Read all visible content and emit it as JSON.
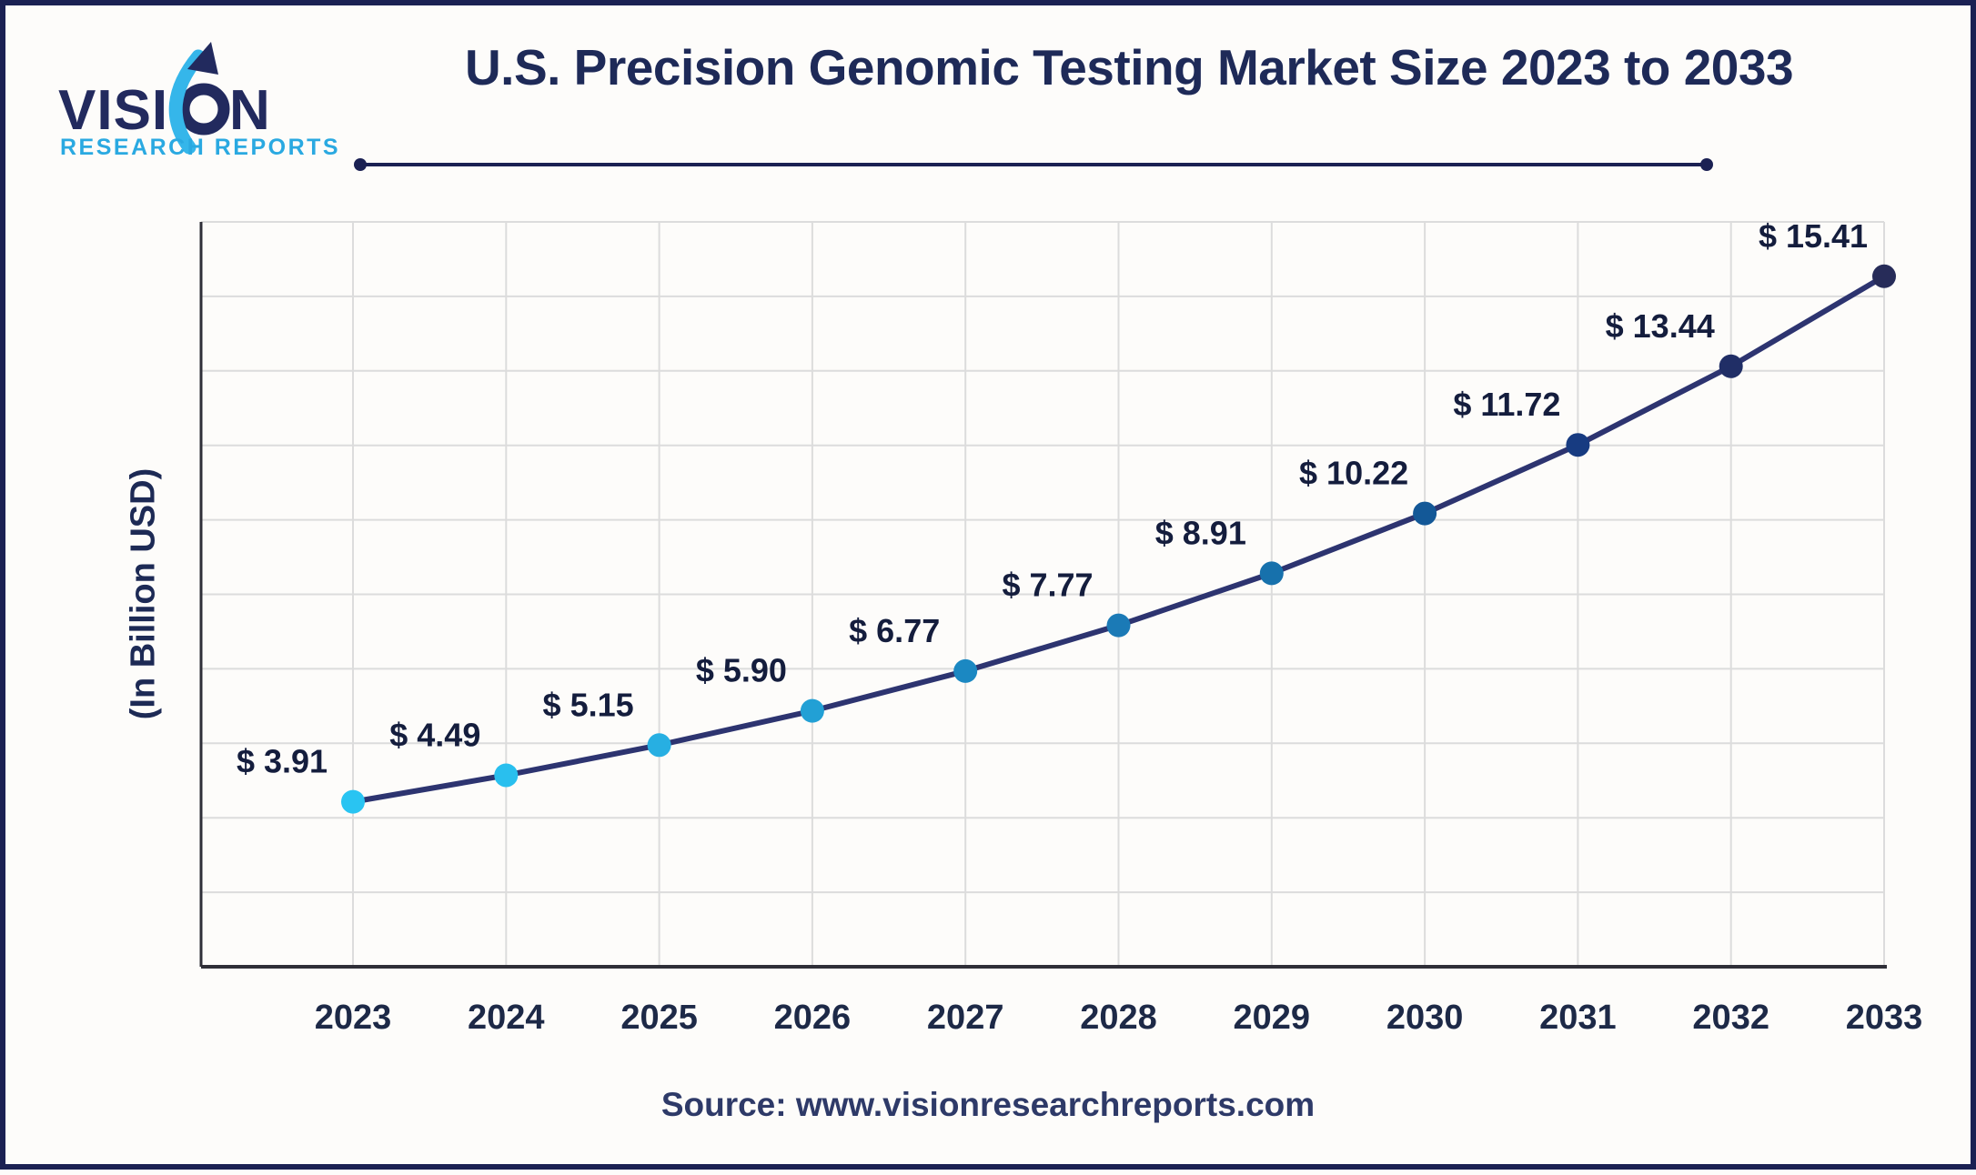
{
  "header": {
    "logo_line1": "VISION",
    "logo_line2": "RESEARCH REPORTS",
    "logo_navy": "#222a5e",
    "logo_blue": "#2aa9e1",
    "logo_cyan": "#35b6ea"
  },
  "chart_data": {
    "type": "line",
    "title": "U.S. Precision Genomic Testing Market Size 2023 to 2033",
    "ylabel": "(In Billion USD)",
    "xlabel": "",
    "categories": [
      "2023",
      "2024",
      "2025",
      "2026",
      "2027",
      "2028",
      "2029",
      "2030",
      "2031",
      "2032",
      "2033"
    ],
    "values": [
      3.91,
      4.49,
      5.15,
      5.9,
      6.77,
      7.77,
      8.91,
      10.22,
      11.72,
      13.44,
      15.41
    ],
    "point_labels": [
      "$ 3.91",
      "$ 4.49",
      "$ 5.15",
      "$ 5.90",
      "$ 6.77",
      "$ 7.77",
      "$ 8.91",
      "$ 10.22",
      "$ 11.72",
      "$ 13.44",
      "$ 15.41"
    ],
    "ylim": [
      0.3,
      16.6
    ],
    "grid": "on",
    "legend": "none",
    "line_color": "#2d3470",
    "point_colors": [
      "#29c4f2",
      "#29bfee",
      "#27afe2",
      "#22a0d5",
      "#1b88c2",
      "#1b7ab6",
      "#1771ac",
      "#135897",
      "#173b81",
      "#202e66",
      "#272c59"
    ],
    "grid_color": "#dcdcdc",
    "axis_color": "#2f2f38",
    "label_color": "#141d3d",
    "tick_color": "#1d2947",
    "divider_color": "#1b2153"
  },
  "footer": {
    "source": "Source: www.visionresearchreports.com"
  }
}
